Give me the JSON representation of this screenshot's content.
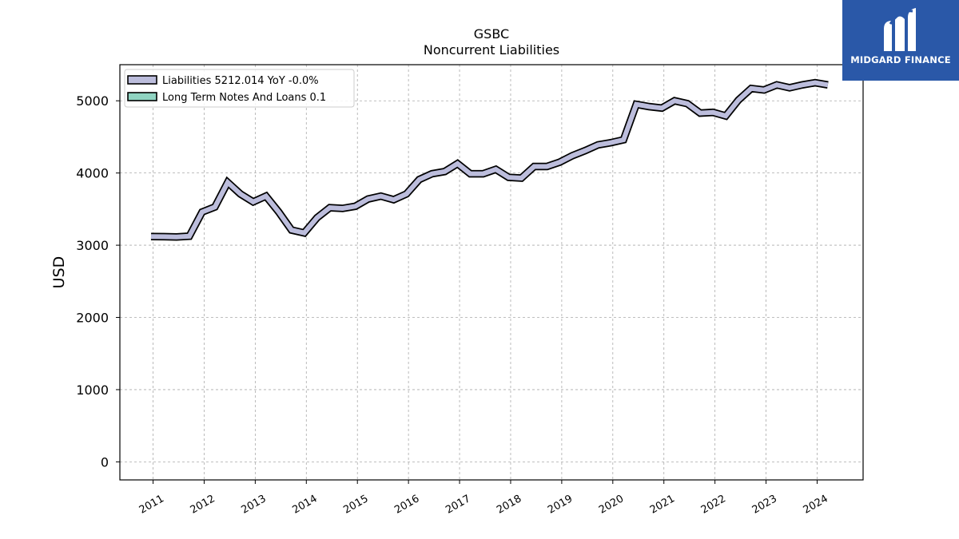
{
  "brand": {
    "name": "MIDGARD FINANCE",
    "background_color": "#2a58a8",
    "text_color": "#ffffff"
  },
  "chart_data": {
    "type": "line",
    "title": "GSBC",
    "subtitle": "Noncurrent  Liabilities",
    "ylabel": "USD",
    "xlabel": "",
    "ylim": [
      -250,
      5500
    ],
    "xlim": [
      2010.35,
      2024.9
    ],
    "yticks": [
      0,
      1000,
      2000,
      3000,
      4000,
      5000
    ],
    "xticks": [
      "2011",
      "2012",
      "2013",
      "2014",
      "2015",
      "2016",
      "2017",
      "2018",
      "2019",
      "2020",
      "2021",
      "2022",
      "2023",
      "2024"
    ],
    "grid": true,
    "legend_position": "top-left",
    "series": [
      {
        "name": "Liabilities",
        "legend_label": "Liabilities  5212.014 YoY -0.0%",
        "color": "#bcbddc",
        "outline_color": "#000000",
        "points": [
          [
            2010.96,
            3120
          ],
          [
            2011.21,
            3118
          ],
          [
            2011.46,
            3115
          ],
          [
            2011.71,
            3125
          ],
          [
            2011.96,
            3460
          ],
          [
            2012.21,
            3530
          ],
          [
            2012.46,
            3870
          ],
          [
            2012.71,
            3710
          ],
          [
            2012.96,
            3600
          ],
          [
            2013.21,
            3680
          ],
          [
            2013.46,
            3460
          ],
          [
            2013.71,
            3210
          ],
          [
            2013.96,
            3170
          ],
          [
            2014.21,
            3380
          ],
          [
            2014.46,
            3520
          ],
          [
            2014.71,
            3510
          ],
          [
            2014.96,
            3540
          ],
          [
            2015.21,
            3640
          ],
          [
            2015.46,
            3680
          ],
          [
            2015.71,
            3630
          ],
          [
            2015.96,
            3710
          ],
          [
            2016.21,
            3910
          ],
          [
            2016.46,
            3990
          ],
          [
            2016.71,
            4020
          ],
          [
            2016.96,
            4130
          ],
          [
            2017.21,
            3990
          ],
          [
            2017.46,
            3990
          ],
          [
            2017.71,
            4050
          ],
          [
            2017.96,
            3940
          ],
          [
            2018.21,
            3930
          ],
          [
            2018.46,
            4090
          ],
          [
            2018.71,
            4090
          ],
          [
            2018.96,
            4150
          ],
          [
            2019.21,
            4240
          ],
          [
            2019.46,
            4310
          ],
          [
            2019.71,
            4390
          ],
          [
            2019.96,
            4420
          ],
          [
            2020.21,
            4460
          ],
          [
            2020.46,
            4950
          ],
          [
            2020.71,
            4920
          ],
          [
            2020.96,
            4900
          ],
          [
            2021.21,
            5000
          ],
          [
            2021.46,
            4960
          ],
          [
            2021.71,
            4830
          ],
          [
            2021.96,
            4840
          ],
          [
            2022.21,
            4790
          ],
          [
            2022.46,
            5010
          ],
          [
            2022.71,
            5170
          ],
          [
            2022.96,
            5150
          ],
          [
            2023.21,
            5220
          ],
          [
            2023.46,
            5180
          ],
          [
            2023.71,
            5220
          ],
          [
            2023.96,
            5250
          ],
          [
            2024.21,
            5220
          ]
        ]
      },
      {
        "name": "Long Term Notes And Loans",
        "legend_label": "Long Term Notes And Loans  0.1",
        "color": "#8fd3c1",
        "outline_color": "#000000",
        "points": []
      }
    ]
  }
}
